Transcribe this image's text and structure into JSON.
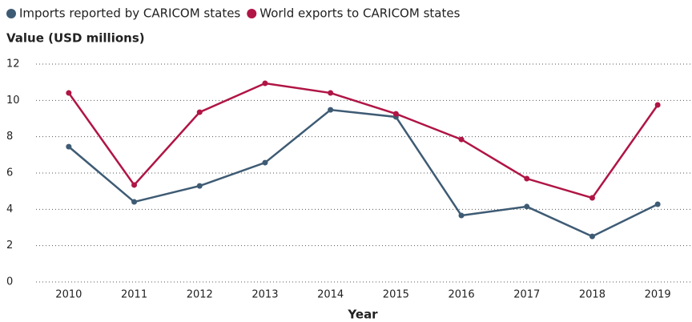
{
  "chart_data": {
    "type": "line",
    "y_label": "Value (USD millions)",
    "x_label": "Year",
    "categories": [
      "2010",
      "2011",
      "2012",
      "2013",
      "2014",
      "2015",
      "2016",
      "2017",
      "2018",
      "2019"
    ],
    "series": [
      {
        "name": "Imports reported by CARICOM states",
        "color": "#3e5b74",
        "values": [
          7.45,
          4.41,
          5.29,
          6.57,
          9.48,
          9.09,
          3.66,
          4.15,
          2.51,
          4.28
        ]
      },
      {
        "name": "World exports to CARICOM states",
        "color": "#b01545",
        "values": [
          10.41,
          5.34,
          9.35,
          10.94,
          10.41,
          9.26,
          7.85,
          5.69,
          4.63,
          9.75
        ]
      }
    ],
    "ylim": [
      0,
      12
    ],
    "yticks": [
      0,
      2,
      4,
      6,
      8,
      10,
      12
    ],
    "grid": true
  }
}
